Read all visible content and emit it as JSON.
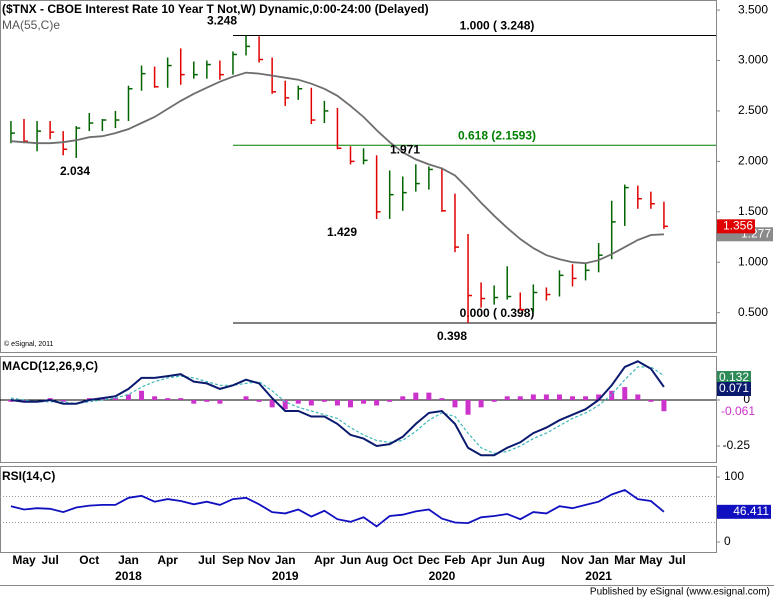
{
  "chart_data": [
    {
      "type": "ohlc",
      "title": "($TNX - CBOE Interest Rate 10 Year T Not,W) Dynamic,0:00-24:00 (Delayed)",
      "note": "© eSignal, 2011",
      "categories": [
        null,
        "May",
        null,
        "Jul",
        null,
        null,
        "Oct",
        null,
        null,
        "Jan",
        null,
        null,
        "Apr",
        null,
        null,
        "Jul",
        null,
        "Sep",
        null,
        "Nov",
        null,
        "Jan",
        null,
        null,
        "Apr",
        null,
        "Jun",
        null,
        "Aug",
        null,
        "Oct",
        null,
        "Dec",
        null,
        "Feb",
        null,
        "Apr",
        null,
        "Jun",
        null,
        "Aug",
        null,
        null,
        "Nov",
        null,
        "Jan",
        null,
        "Mar",
        null,
        "May",
        null,
        "Jul"
      ],
      "years": [
        "2018",
        "2019",
        "2020",
        "2021"
      ],
      "high": [
        2.4,
        2.42,
        2.4,
        2.4,
        2.3,
        2.35,
        2.48,
        2.42,
        2.5,
        2.75,
        2.95,
        2.94,
        3.03,
        3.12,
        2.99,
        3.0,
        3.0,
        3.09,
        3.248,
        3.24,
        3.03,
        2.8,
        2.75,
        2.73,
        2.6,
        2.53,
        2.15,
        2.13,
        2.06,
        1.91,
        1.85,
        1.971,
        1.95,
        1.94,
        1.68,
        1.28,
        0.8,
        0.77,
        0.96,
        0.7,
        0.78,
        0.75,
        0.92,
        0.98,
        0.99,
        1.19,
        1.61,
        1.77,
        1.76,
        1.7,
        1.6,
        null
      ],
      "low": [
        2.18,
        2.18,
        2.1,
        2.22,
        2.06,
        2.034,
        2.3,
        2.3,
        2.33,
        2.4,
        2.7,
        2.73,
        2.73,
        2.76,
        2.82,
        2.82,
        2.81,
        2.86,
        3.05,
        2.98,
        2.67,
        2.55,
        2.61,
        2.37,
        2.38,
        2.12,
        1.97,
        1.97,
        1.429,
        1.43,
        1.51,
        1.7,
        1.72,
        1.5,
        1.1,
        0.398,
        0.55,
        0.58,
        0.63,
        0.52,
        0.5,
        0.62,
        0.66,
        0.76,
        0.82,
        0.9,
        1.03,
        1.36,
        1.53,
        1.53,
        1.33,
        null
      ],
      "close": [
        2.28,
        2.2,
        2.3,
        2.29,
        2.12,
        2.33,
        2.38,
        2.41,
        2.41,
        2.72,
        2.87,
        2.74,
        2.95,
        2.86,
        2.86,
        2.96,
        2.86,
        3.06,
        3.14,
        3.01,
        2.69,
        2.63,
        2.72,
        2.41,
        2.5,
        2.13,
        2.0,
        2.01,
        1.5,
        1.67,
        1.69,
        1.78,
        1.92,
        1.51,
        1.15,
        0.67,
        0.64,
        0.65,
        0.66,
        0.53,
        0.7,
        0.68,
        0.87,
        0.84,
        0.92,
        1.07,
        1.4,
        1.74,
        1.63,
        1.58,
        1.356,
        null
      ],
      "up_color": "#006400",
      "down_color": "#e00000",
      "series": [
        {
          "name": "MA(55,C)e",
          "color": "#6e6e6e",
          "values": [
            2.2,
            2.19,
            2.18,
            2.18,
            2.19,
            2.21,
            2.24,
            2.25,
            2.28,
            2.32,
            2.38,
            2.44,
            2.52,
            2.6,
            2.67,
            2.73,
            2.79,
            2.84,
            2.88,
            2.87,
            2.85,
            2.83,
            2.81,
            2.77,
            2.72,
            2.65,
            2.55,
            2.44,
            2.31,
            2.19,
            2.09,
            2.02,
            1.97,
            1.93,
            1.86,
            1.73,
            1.59,
            1.46,
            1.34,
            1.23,
            1.14,
            1.07,
            1.03,
            1.0,
            0.99,
            1.02,
            1.08,
            1.15,
            1.22,
            1.27,
            1.277,
            null
          ]
        }
      ],
      "annotations": [
        3.248,
        2.034,
        1.971,
        1.429,
        0.398
      ],
      "fib_levels": [
        {
          "value": 3.248,
          "label": "1.000 ( 3.248)",
          "color": "#000000"
        },
        {
          "value": 2.1593,
          "label": "0.618 (2.1593)",
          "color": "#008000"
        },
        {
          "value": 0.398,
          "label": "0.000 ( 0.398)",
          "color": "#000000"
        }
      ],
      "ylim": [
        0.11,
        3.6
      ],
      "yticks": [
        {
          "value": 0.5,
          "label": "0.500"
        },
        {
          "value": 1,
          "label": "1.000"
        },
        {
          "value": 1.5,
          "label": "1.500"
        },
        {
          "value": 2,
          "label": "2.000"
        },
        {
          "value": 2.5,
          "label": "2.500"
        },
        {
          "value": 3,
          "label": "3.000"
        },
        {
          "value": 3.5,
          "label": "3.500"
        }
      ]
    },
    {
      "type": "macd",
      "title": "MACD(12,26,9,C)",
      "macd": {
        "color": "#0a1a6e",
        "values": [
          0.0,
          -0.01,
          -0.01,
          0.0,
          -0.02,
          -0.02,
          0.0,
          0.01,
          0.02,
          0.06,
          0.12,
          0.12,
          0.13,
          0.14,
          0.1,
          0.09,
          0.06,
          0.08,
          0.11,
          0.09,
          0.01,
          -0.06,
          -0.06,
          -0.09,
          -0.09,
          -0.13,
          -0.19,
          -0.21,
          -0.25,
          -0.24,
          -0.2,
          -0.13,
          -0.07,
          -0.06,
          -0.13,
          -0.26,
          -0.3,
          -0.3,
          -0.26,
          -0.23,
          -0.18,
          -0.15,
          -0.11,
          -0.08,
          -0.05,
          0.0,
          0.08,
          0.18,
          0.21,
          0.17,
          0.071,
          null
        ]
      },
      "signal": {
        "color": "#40b8b8",
        "values": [
          0.01,
          0.0,
          -0.01,
          -0.01,
          -0.01,
          -0.02,
          -0.01,
          0.0,
          0.01,
          0.03,
          0.07,
          0.1,
          0.12,
          0.13,
          0.12,
          0.1,
          0.08,
          0.08,
          0.09,
          0.1,
          0.05,
          -0.01,
          -0.04,
          -0.06,
          -0.08,
          -0.1,
          -0.15,
          -0.19,
          -0.22,
          -0.23,
          -0.22,
          -0.17,
          -0.11,
          -0.07,
          -0.09,
          -0.18,
          -0.26,
          -0.29,
          -0.28,
          -0.25,
          -0.21,
          -0.18,
          -0.14,
          -0.1,
          -0.07,
          -0.03,
          0.03,
          0.11,
          0.18,
          0.18,
          0.132,
          null
        ]
      },
      "histogram": {
        "color": "#cc33cc",
        "values": [
          -0.01,
          -0.01,
          0.0,
          0.01,
          -0.01,
          0.0,
          0.01,
          0.01,
          0.01,
          0.03,
          0.05,
          0.02,
          0.01,
          0.01,
          -0.02,
          -0.01,
          -0.02,
          0.0,
          0.02,
          -0.01,
          -0.04,
          -0.05,
          -0.02,
          -0.03,
          -0.01,
          -0.03,
          -0.04,
          -0.02,
          -0.03,
          -0.01,
          0.02,
          0.04,
          0.04,
          0.01,
          -0.04,
          -0.08,
          -0.04,
          -0.01,
          0.02,
          0.02,
          0.03,
          0.03,
          0.03,
          0.02,
          0.02,
          0.03,
          0.05,
          0.07,
          0.03,
          -0.01,
          -0.061,
          null
        ]
      },
      "ylim": [
        -0.337,
        0.239
      ],
      "yticks": [
        0,
        -0.25
      ]
    },
    {
      "type": "line",
      "title": "RSI(14,C)",
      "color": "#1010c0",
      "values": [
        55,
        50,
        52,
        51,
        46,
        53,
        56,
        57,
        57,
        68,
        71,
        62,
        66,
        63,
        58,
        62,
        57,
        66,
        68,
        58,
        46,
        44,
        50,
        39,
        48,
        35,
        31,
        38,
        24,
        40,
        42,
        47,
        50,
        36,
        30,
        29,
        38,
        40,
        43,
        35,
        46,
        44,
        55,
        52,
        57,
        62,
        73,
        80,
        66,
        63,
        46.411,
        null
      ],
      "ref_levels": [
        70,
        30
      ],
      "ylim": [
        -15.4,
        116.9
      ],
      "yticks": [
        0,
        100
      ]
    }
  ],
  "footer": "Published by eSignal (www.esignal.com)"
}
